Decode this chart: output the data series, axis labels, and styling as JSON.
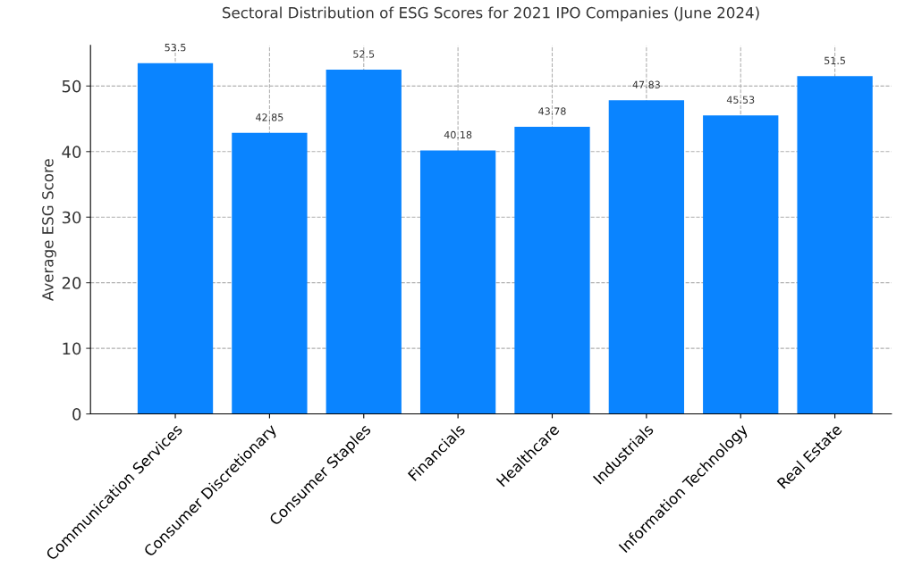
{
  "chart_data": {
    "type": "bar",
    "title": "Sectoral Distribution of ESG Scores for 2021 IPO Companies (June 2024)",
    "ylabel": "Average ESG Score",
    "categories": [
      "Communication Services",
      "Consumer Discretionary",
      "Consumer Staples",
      "Financials",
      "Healthcare",
      "Industrials",
      "Information Technology",
      "Real Estate"
    ],
    "values": [
      53.5,
      42.85,
      52.5,
      40.18,
      43.78,
      47.83,
      45.53,
      51.5
    ],
    "color": "#0a84ff",
    "ylim": [
      0,
      56.2
    ],
    "yticks": [
      0,
      10,
      20,
      30,
      40,
      50
    ],
    "grid": true,
    "data_labels": true
  }
}
